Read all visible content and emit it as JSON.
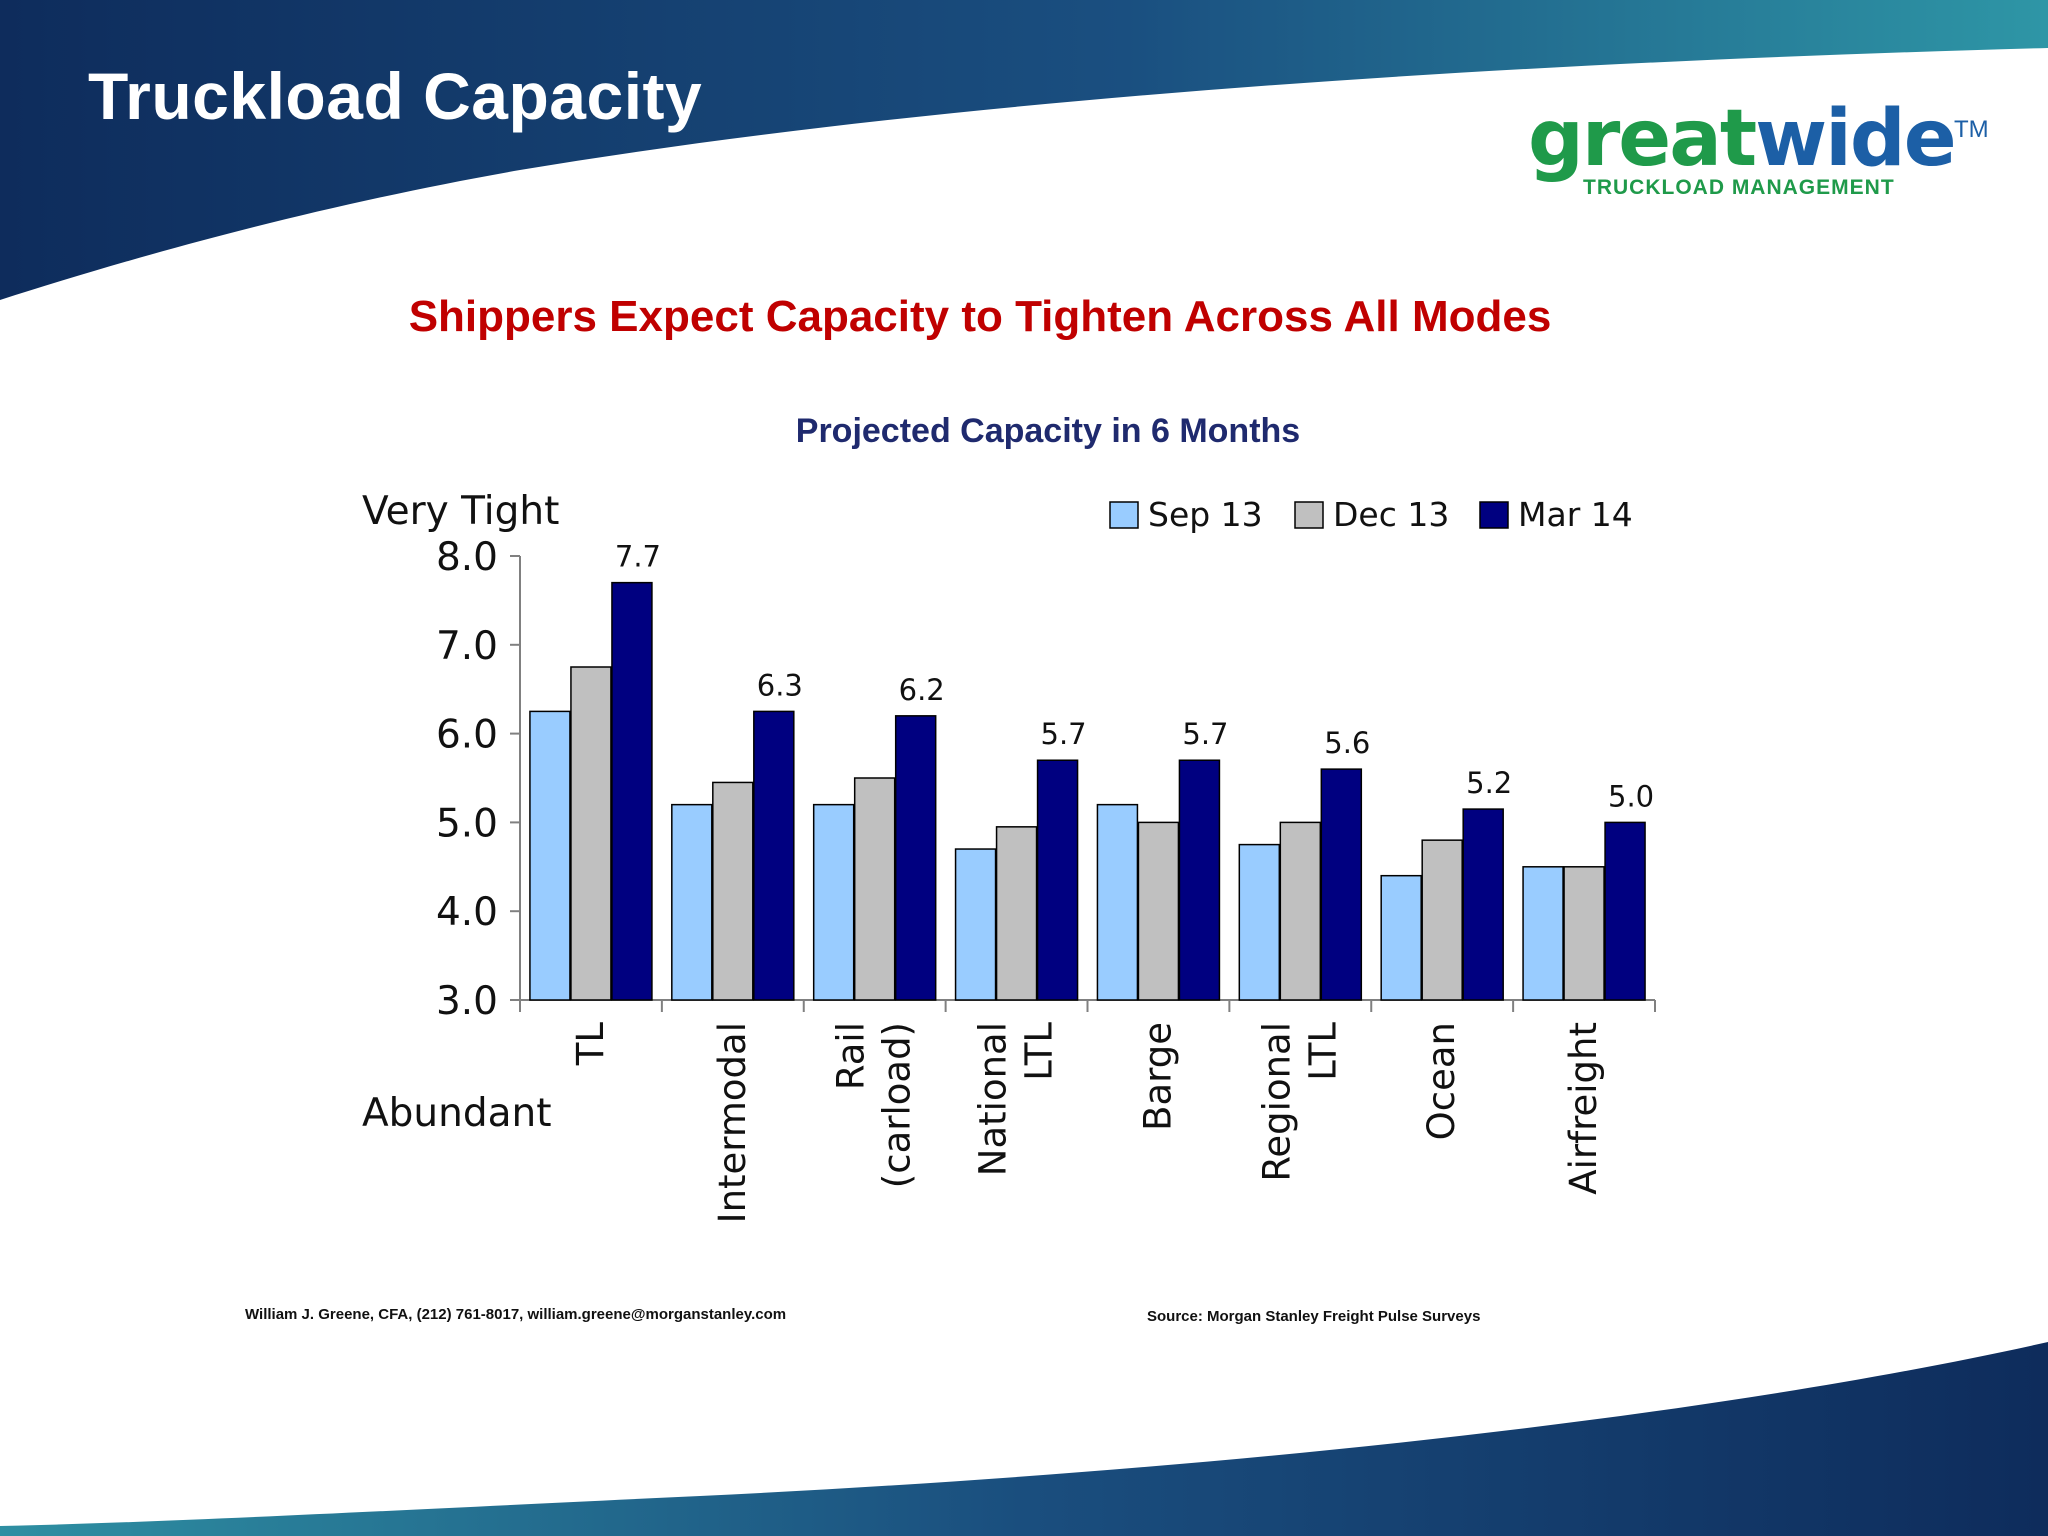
{
  "slide": {
    "title": "Truckload Capacity",
    "subtitle": "Shippers Expect Capacity to Tighten Across All Modes",
    "footer_left": "William J. Greene, CFA, (212) 761-8017, william.greene@morganstanley.com",
    "footer_right": "Source: Morgan Stanley Freight Pulse Surveys"
  },
  "logo": {
    "word_part1": "great",
    "word_part2": "wide",
    "tm": "TM",
    "tagline": "TRUCKLOAD MANAGEMENT",
    "colors": {
      "green": "#1f9a4a",
      "blue": "#1c5fa6"
    }
  },
  "colors": {
    "navy": "#0e2c5c",
    "teal": "#2c8ea0",
    "title_red": "#c00000",
    "chart_title": "#1f2a6e"
  },
  "chart_data": {
    "type": "bar",
    "title": "Projected Capacity in 6 Months",
    "ylabel_top": "Very Tight",
    "ylabel_bottom": "Abundant",
    "ylim": [
      3.0,
      8.0
    ],
    "yticks": [
      "3.0",
      "4.0",
      "5.0",
      "6.0",
      "7.0",
      "8.0"
    ],
    "grid": false,
    "legend_position": "top-right",
    "categories": [
      "TL",
      "Intermodal",
      "Rail (carload)",
      "National LTL",
      "Barge",
      "Regional LTL",
      "Ocean",
      "Airfreight"
    ],
    "category_lines": [
      [
        "TL"
      ],
      [
        "Intermodal"
      ],
      [
        "Rail",
        "(carload)"
      ],
      [
        "National",
        "LTL"
      ],
      [
        "Barge"
      ],
      [
        "Regional",
        "LTL"
      ],
      [
        "Ocean"
      ],
      [
        "Airfreight"
      ]
    ],
    "series": [
      {
        "name": "Sep 13",
        "color": "#99ccff",
        "values": [
          6.25,
          5.2,
          5.2,
          4.7,
          5.2,
          4.75,
          4.4,
          4.5
        ]
      },
      {
        "name": "Dec 13",
        "color": "#c0c0c0",
        "values": [
          6.75,
          5.45,
          5.5,
          4.95,
          5.0,
          5.0,
          4.8,
          4.5
        ]
      },
      {
        "name": "Mar 14",
        "color": "#000080",
        "values": [
          7.7,
          6.25,
          6.2,
          5.7,
          5.7,
          5.6,
          5.15,
          5.0
        ]
      }
    ],
    "data_labels": [
      "7.7",
      "6.3",
      "6.2",
      "5.7",
      "5.7",
      "5.6",
      "5.2",
      "5.0"
    ]
  }
}
